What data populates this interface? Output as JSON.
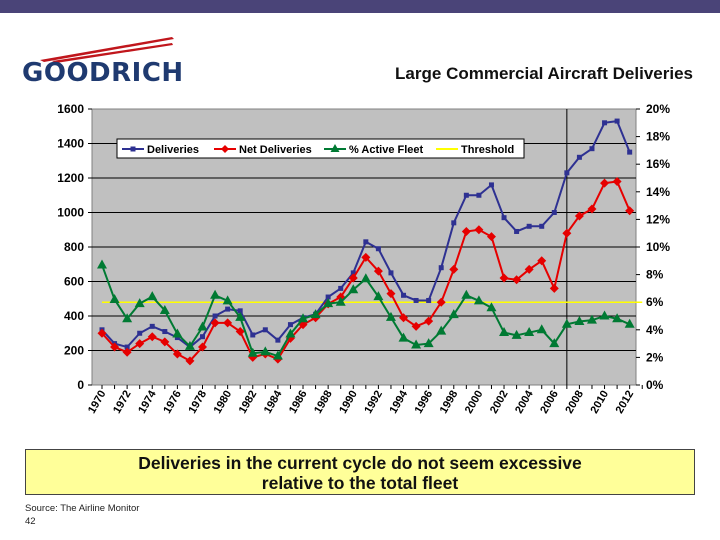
{
  "colors": {
    "topbar": "#4a4478",
    "accent": "#1f3a70",
    "logo_red": "#c0161c"
  },
  "logo": {
    "text": "GOODRICH"
  },
  "title": "Large Commercial Aircraft Deliveries",
  "callout": {
    "line1": "Deliveries in the current cycle do not seem excessive",
    "line2": "relative to the total fleet"
  },
  "source": "Source:  The Airline Monitor",
  "page_number": "42",
  "chart_data": {
    "type": "line",
    "x": [
      1970,
      1971,
      1972,
      1973,
      1974,
      1975,
      1976,
      1977,
      1978,
      1979,
      1980,
      1981,
      1982,
      1983,
      1984,
      1985,
      1986,
      1987,
      1988,
      1989,
      1990,
      1991,
      1992,
      1993,
      1994,
      1995,
      1996,
      1997,
      1998,
      1999,
      2000,
      2001,
      2002,
      2003,
      2004,
      2005,
      2006,
      2007,
      2008,
      2009,
      2010,
      2011,
      2012,
      2013
    ],
    "xticks": [
      "1970",
      "1972",
      "1974",
      "1976",
      "1978",
      "1980",
      "1982",
      "1984",
      "1986",
      "1988",
      "1990",
      "1992",
      "1994",
      "1996",
      "1998",
      "2000",
      "2002",
      "2004",
      "2006",
      "2008",
      "2010",
      "2012"
    ],
    "ylim": [
      0,
      1600
    ],
    "yticks": [
      "0",
      "200",
      "400",
      "600",
      "800",
      "1000",
      "1200",
      "1400",
      "1600"
    ],
    "y2lim": [
      0,
      20
    ],
    "y2ticks": [
      "0%",
      "2%",
      "4%",
      "6%",
      "8%",
      "10%",
      "12%",
      "14%",
      "16%",
      "18%",
      "20%"
    ],
    "grid": true,
    "legend_position": "top",
    "vline_x": 2007,
    "series": [
      {
        "name": "Deliveries",
        "color": "#2e3192",
        "marker": "square",
        "axis": "left",
        "values": [
          320,
          240,
          220,
          300,
          340,
          310,
          275,
          220,
          280,
          400,
          440,
          430,
          290,
          320,
          260,
          350,
          390,
          410,
          510,
          560,
          650,
          830,
          790,
          650,
          520,
          490,
          490,
          680,
          940,
          1100,
          1100,
          1160,
          970,
          890,
          920,
          920,
          1000,
          1230,
          1320,
          1370,
          1520,
          1530,
          1350,
          null
        ]
      },
      {
        "name": "Net Deliveries",
        "color": "#e60000",
        "marker": "diamond",
        "axis": "left",
        "values": [
          300,
          220,
          190,
          240,
          280,
          250,
          180,
          140,
          220,
          360,
          360,
          310,
          160,
          180,
          150,
          270,
          350,
          390,
          470,
          510,
          620,
          740,
          660,
          530,
          390,
          340,
          370,
          480,
          670,
          890,
          900,
          860,
          620,
          610,
          670,
          720,
          560,
          880,
          980,
          1020,
          1170,
          1180,
          1010,
          null
        ]
      },
      {
        "name": "% Active Fleet",
        "color": "#007a33",
        "marker": "triangle",
        "axis": "right",
        "values": [
          8.7,
          6.2,
          4.8,
          5.9,
          6.4,
          5.4,
          3.7,
          2.8,
          4.2,
          6.5,
          6.1,
          4.9,
          2.3,
          2.4,
          2.1,
          3.7,
          4.8,
          5.1,
          5.9,
          6.0,
          6.9,
          7.7,
          6.4,
          4.9,
          3.4,
          2.9,
          3.0,
          3.9,
          5.1,
          6.5,
          6.1,
          5.6,
          3.8,
          3.6,
          3.8,
          4.0,
          3.0,
          4.4,
          4.6,
          4.7,
          5.0,
          4.8,
          4.4,
          null
        ]
      },
      {
        "name": "Threshold",
        "color": "#ffff00",
        "marker": "none",
        "axis": "right",
        "values": [
          6,
          6,
          6,
          6,
          6,
          6,
          6,
          6,
          6,
          6,
          6,
          6,
          6,
          6,
          6,
          6,
          6,
          6,
          6,
          6,
          6,
          6,
          6,
          6,
          6,
          6,
          6,
          6,
          6,
          6,
          6,
          6,
          6,
          6,
          6,
          6,
          6,
          6,
          6,
          6,
          6,
          6,
          6,
          6
        ]
      }
    ]
  }
}
